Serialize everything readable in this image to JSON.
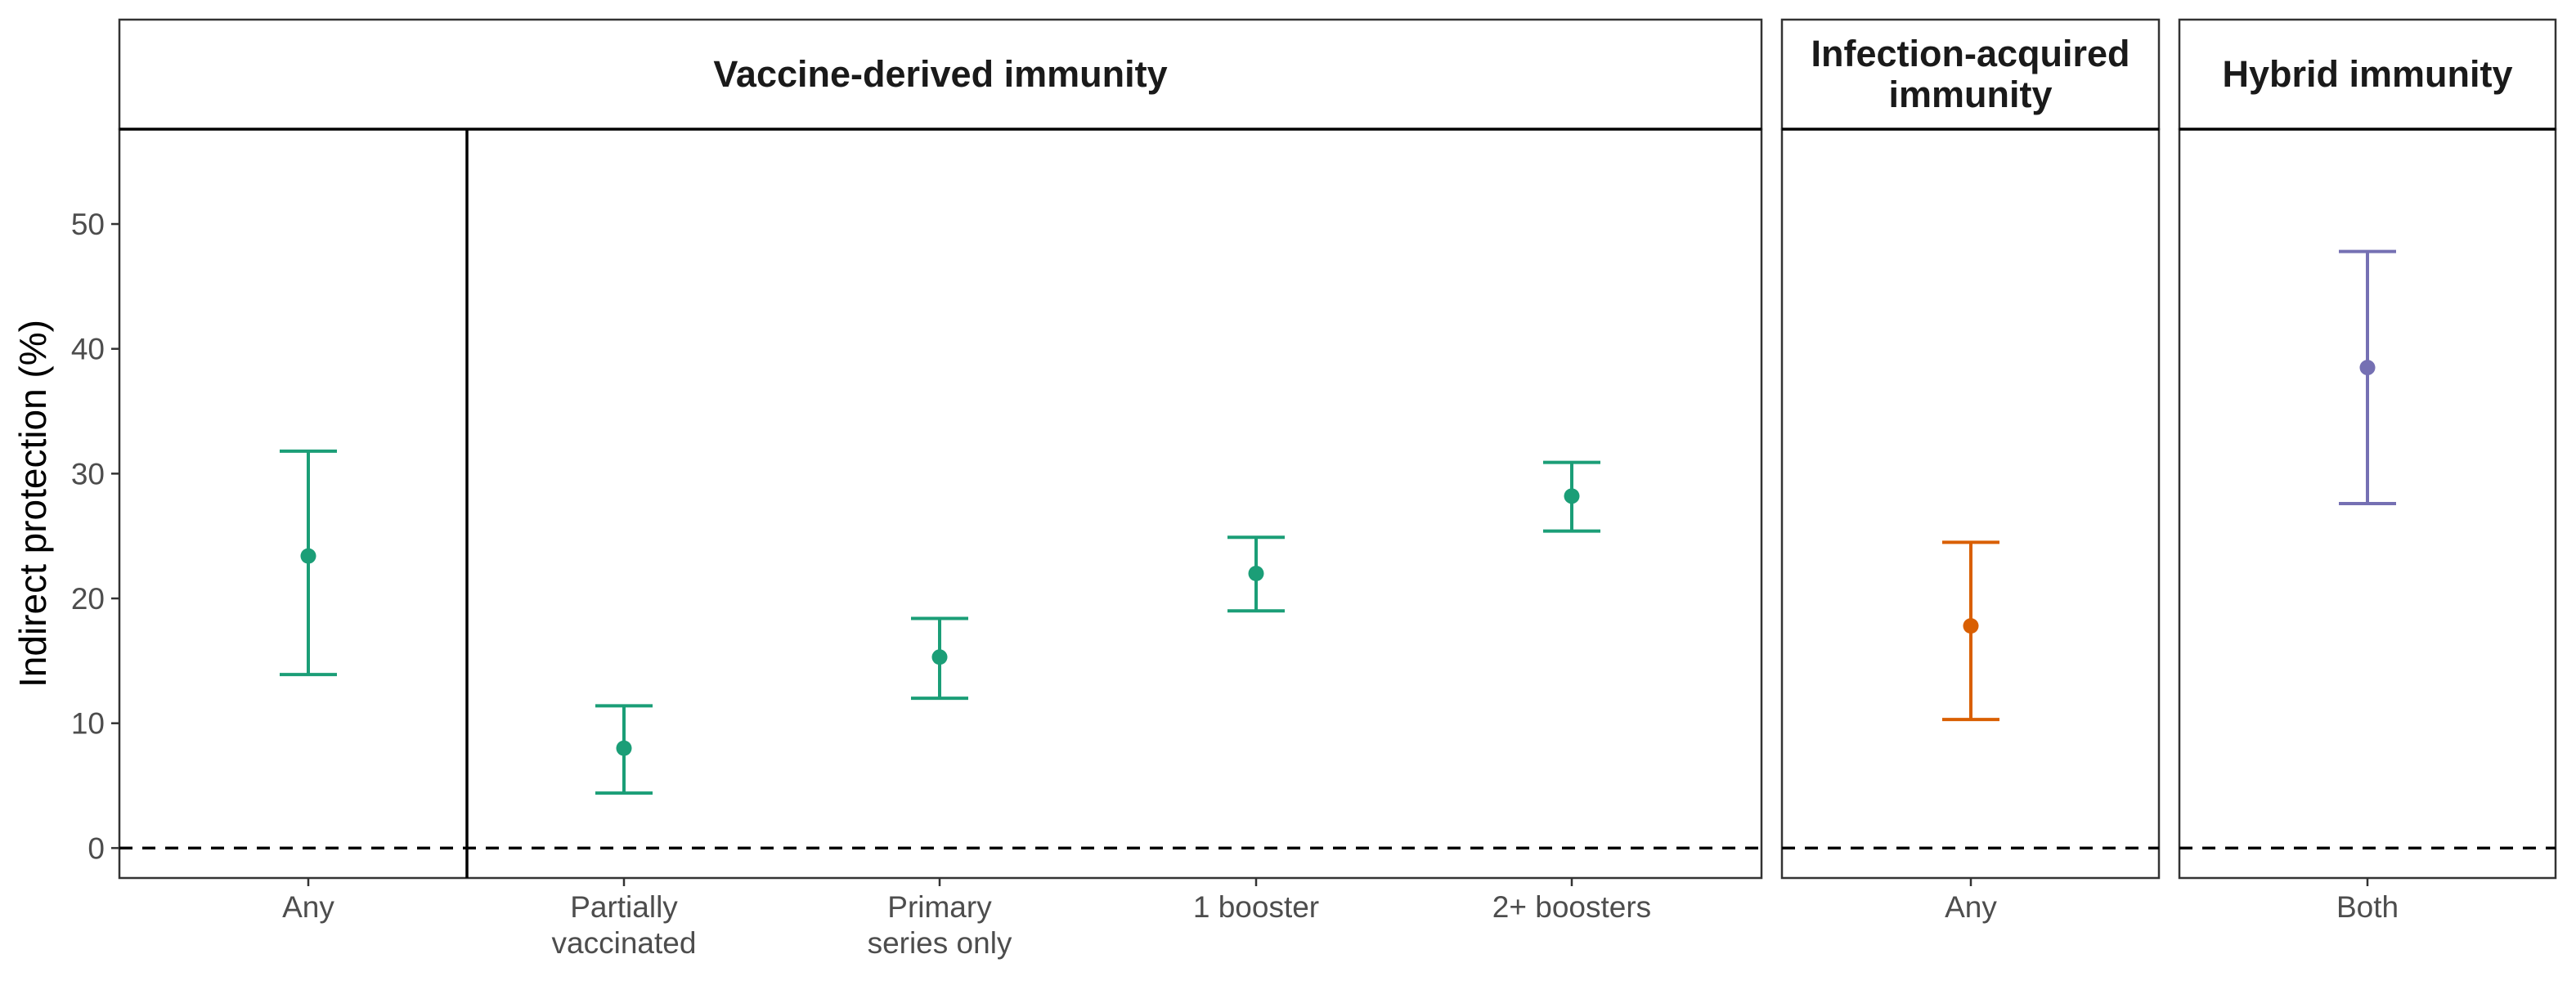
{
  "chart_data": {
    "type": "scatter",
    "ylabel": "Indirect protection (%)",
    "ylim": [
      -2.4,
      57.6
    ],
    "y_ticks": [
      0,
      10,
      20,
      30,
      40,
      50
    ],
    "reference_line_y": 0,
    "grid": false,
    "panels": [
      {
        "id": "vaccine",
        "title_lines": [
          "Vaccine-derived immunity"
        ],
        "color": "#1b9e77",
        "categories": [
          "Any",
          "Partially|vaccinated",
          "Primary|series only",
          "1 booster",
          "2+ boosters"
        ],
        "divider_after_index": 0,
        "points": [
          {
            "x": "Any",
            "y": 23.4,
            "lower": 13.9,
            "upper": 31.8
          },
          {
            "x": "Partially|vaccinated",
            "y": 8.0,
            "lower": 4.4,
            "upper": 11.4
          },
          {
            "x": "Primary|series only",
            "y": 15.3,
            "lower": 12.0,
            "upper": 18.4
          },
          {
            "x": "1 booster",
            "y": 22.0,
            "lower": 19.0,
            "upper": 24.9
          },
          {
            "x": "2+ boosters",
            "y": 28.2,
            "lower": 25.4,
            "upper": 30.9
          }
        ]
      },
      {
        "id": "infection",
        "title_lines": [
          "Infection-acquired",
          "immunity"
        ],
        "color": "#d95f02",
        "categories": [
          "Any"
        ],
        "points": [
          {
            "x": "Any",
            "y": 17.8,
            "lower": 10.3,
            "upper": 24.5
          }
        ]
      },
      {
        "id": "hybrid",
        "title_lines": [
          "Hybrid immunity"
        ],
        "color": "#7570b3",
        "categories": [
          "Both"
        ],
        "points": [
          {
            "x": "Both",
            "y": 38.5,
            "lower": 27.6,
            "upper": 47.8
          }
        ]
      }
    ]
  }
}
